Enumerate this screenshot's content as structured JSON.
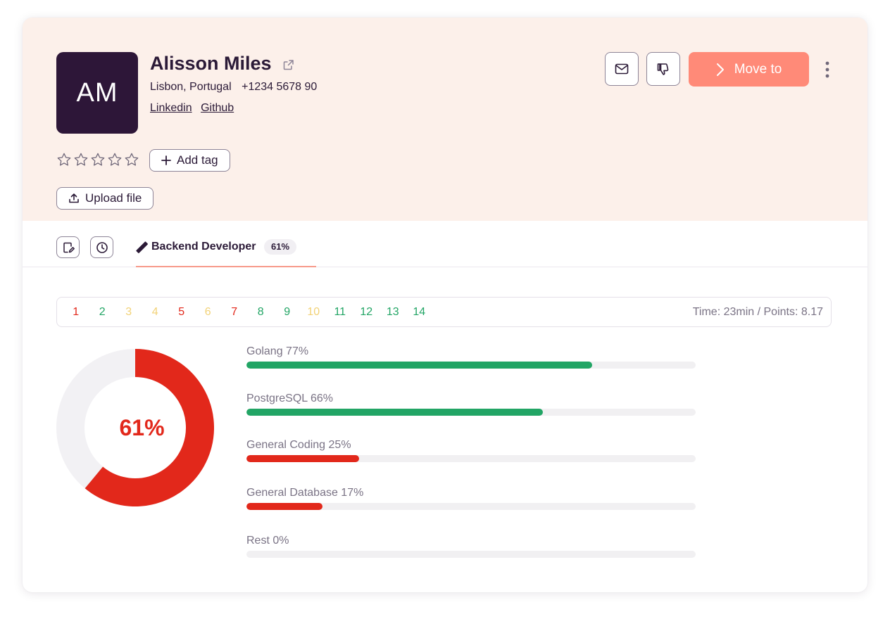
{
  "candidate": {
    "initials": "AM",
    "name": "Alisson Miles",
    "location": "Lisbon, Portugal",
    "phone": "+1234 5678 90",
    "links": [
      "Linkedin",
      "Github"
    ],
    "rating": 0,
    "rating_max": 5
  },
  "actions": {
    "move_to_label": "Move to",
    "move_to_color": "#ff8a78",
    "add_tag_label": "Add tag",
    "upload_file_label": "Upload file"
  },
  "tab": {
    "label": "Backend Developer",
    "score_badge": "61%"
  },
  "questions": {
    "numbers": [
      {
        "n": "1",
        "status": "red"
      },
      {
        "n": "2",
        "status": "green"
      },
      {
        "n": "3",
        "status": "yellow"
      },
      {
        "n": "4",
        "status": "yellow"
      },
      {
        "n": "5",
        "status": "red"
      },
      {
        "n": "6",
        "status": "yellow"
      },
      {
        "n": "7",
        "status": "red"
      },
      {
        "n": "8",
        "status": "green"
      },
      {
        "n": "9",
        "status": "green"
      },
      {
        "n": "10",
        "status": "yellow"
      },
      {
        "n": "11",
        "status": "green"
      },
      {
        "n": "12",
        "status": "green"
      },
      {
        "n": "13",
        "status": "green"
      },
      {
        "n": "14",
        "status": "green"
      }
    ],
    "summary": "Time: 23min / Points: 8.17"
  },
  "colors": {
    "red": "#e2281b",
    "green": "#22a565",
    "yellow": "#f2d277"
  },
  "score": {
    "label": "61%",
    "value": 0.61,
    "color": "#e2281b"
  },
  "skills": [
    {
      "label": "Golang 77%",
      "value": 0.77,
      "status": "green"
    },
    {
      "label": "PostgreSQL 66%",
      "value": 0.66,
      "status": "green"
    },
    {
      "label": "General Coding 25%",
      "value": 0.25,
      "status": "red"
    },
    {
      "label": "General Database 17%",
      "value": 0.17,
      "status": "red"
    },
    {
      "label": "Rest 0%",
      "value": 0,
      "status": "red"
    }
  ]
}
